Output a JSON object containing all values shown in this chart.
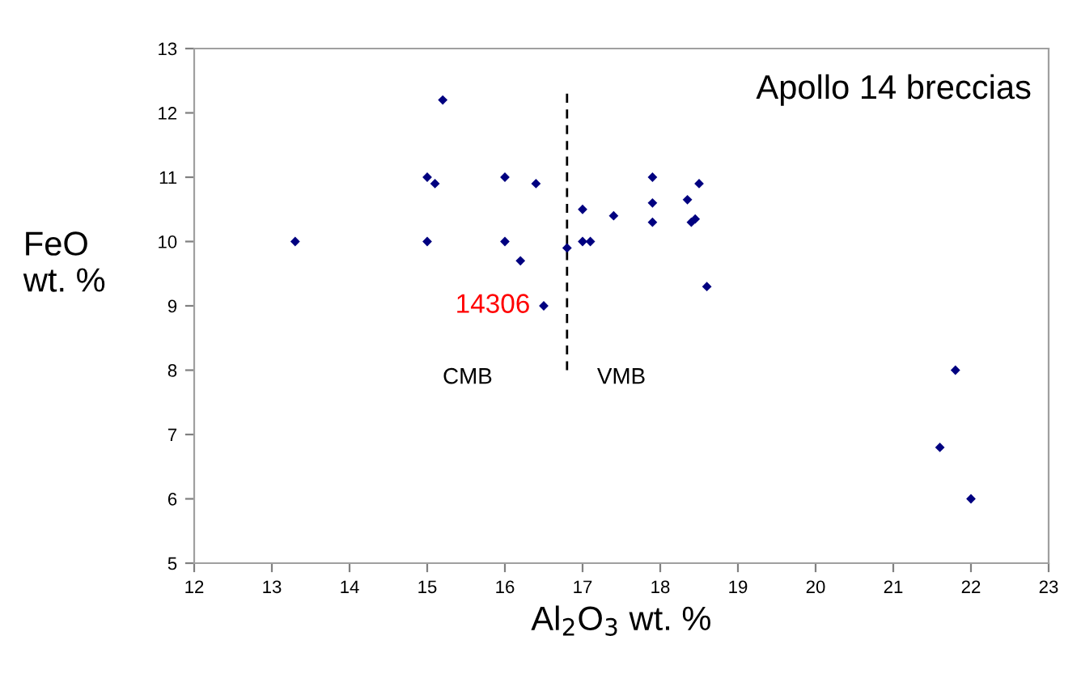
{
  "chart_data": {
    "type": "scatter",
    "xlabel": "Al$_{2}$O$_{3}$ wt. %",
    "ylabel": "FeO\nwt. %",
    "xlim": [
      12,
      23
    ],
    "xticks": [
      12,
      13,
      14,
      15,
      16,
      17,
      18,
      19,
      20,
      21,
      22,
      23
    ],
    "ylim": [
      5,
      13
    ],
    "yticks": [
      5,
      6,
      7,
      8,
      9,
      10,
      11,
      12,
      13
    ],
    "grid": false,
    "legend": false,
    "marker": "diamond",
    "series": [
      {
        "color": "#000080",
        "x": [
          13.3,
          15.0,
          15.1,
          15.2,
          15.0,
          16.0,
          16.4,
          16.0,
          16.2,
          16.5,
          16.8,
          17.0,
          17.0,
          17.1,
          17.4,
          17.9,
          17.9,
          17.9,
          18.35,
          18.5,
          18.4,
          18.45,
          18.6,
          21.8,
          21.6,
          22.0
        ],
        "values": [
          10.0,
          11.0,
          10.9,
          12.2,
          10.0,
          11.0,
          10.9,
          10.0,
          9.7,
          9.0,
          9.9,
          10.5,
          10.0,
          10.0,
          10.4,
          11.0,
          10.6,
          10.3,
          10.65,
          10.9,
          10.3,
          10.35,
          9.3,
          8.0,
          6.8,
          6.0
        ]
      },
      {
        "type": "line",
        "color": "#000000",
        "line_style": "dashed",
        "marker": "none",
        "x": [
          16.8,
          16.8
        ],
        "values": [
          8.0,
          12.3
        ]
      }
    ],
    "annotations": [
      "Apollo 14 breccias",
      {
        "text": "14306",
        "x": 16.5,
        "y": 9.0
      },
      "CMB",
      "VMB"
    ]
  }
}
